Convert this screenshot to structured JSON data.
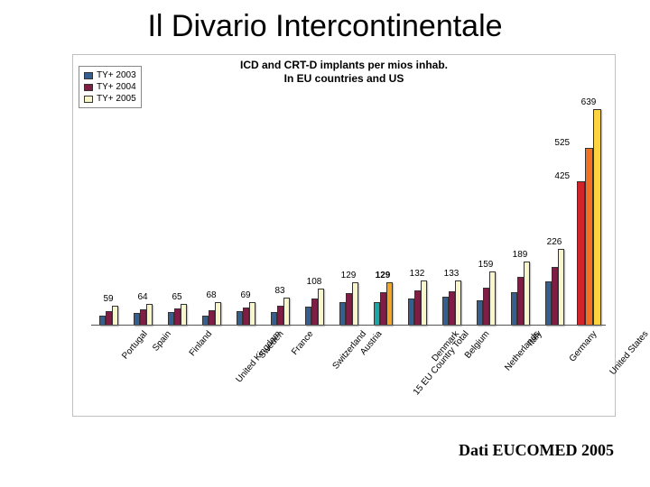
{
  "title": "Il Divario Intercontinentale",
  "chart": {
    "type": "bar",
    "subtitle_line1": "ICD and CRT-D implants per mios inhab.",
    "subtitle_line2": "In EU countries and US",
    "legend": [
      {
        "label": "TY+ 2003",
        "color": "#365f91"
      },
      {
        "label": "TY+ 2004",
        "color": "#7f1d45"
      },
      {
        "label": "TY+ 2005",
        "color": "#f9f7c9"
      }
    ],
    "ymax": 639,
    "background_color": "#ffffff",
    "border_color": "#c0c0c0",
    "bar_border": "#333333",
    "colors": {
      "y2003": "#365f91",
      "y2004": "#7f1d45",
      "y2005": "#f9f7c9"
    },
    "highlight": {
      "category": "15 EU Country Total",
      "color_y2003": "#1aa6a6",
      "color_y2005": "#f5a623"
    },
    "us_colors": {
      "y2003": "#d2232a",
      "y2004": "#f36f21",
      "y2005": "#ffd23f"
    },
    "categories": [
      {
        "name": "Portugal",
        "label": "59",
        "y2003": 30,
        "y2004": 43,
        "y2005": 59
      },
      {
        "name": "Spain",
        "label": "64",
        "y2003": 38,
        "y2004": 49,
        "y2005": 64
      },
      {
        "name": "Finland",
        "label": "65",
        "y2003": 40,
        "y2004": 50,
        "y2005": 65
      },
      {
        "name": "United Kingdom",
        "label": "68",
        "y2003": 30,
        "y2004": 45,
        "y2005": 68
      },
      {
        "name": "Sweden",
        "label": "69",
        "y2003": 42,
        "y2004": 52,
        "y2005": 69
      },
      {
        "name": "France",
        "label": "83",
        "y2003": 40,
        "y2004": 58,
        "y2005": 83
      },
      {
        "name": "Switzerland",
        "label": "108",
        "y2003": 55,
        "y2004": 80,
        "y2005": 108
      },
      {
        "name": "Austria",
        "label": "129",
        "y2003": 70,
        "y2004": 95,
        "y2005": 129
      },
      {
        "name": "15 EU Country Total",
        "label": "129",
        "y2003": 69,
        "y2004": 99,
        "y2005": 129,
        "highlight": true
      },
      {
        "name": "Denmark",
        "label": "132",
        "y2003": 81,
        "y2004": 104,
        "y2005": 132
      },
      {
        "name": "Belgium",
        "label": "133",
        "y2003": 84,
        "y2004": 100,
        "y2005": 133
      },
      {
        "name": "Netherlands",
        "label": "159",
        "y2003": 75,
        "y2004": 112,
        "y2005": 159
      },
      {
        "name": "Italy",
        "label": "189",
        "y2003": 98,
        "y2004": 145,
        "y2005": 189
      },
      {
        "name": "Germany",
        "label": "226",
        "y2003": 130,
        "y2004": 172,
        "y2005": 226
      },
      {
        "name": "United States",
        "label": "639",
        "y2003": 425,
        "y2004": 525,
        "y2005": 639,
        "us": true,
        "extra_labels": [
          "425",
          "525"
        ]
      }
    ]
  },
  "footer": "Dati EUCOMED 2005"
}
